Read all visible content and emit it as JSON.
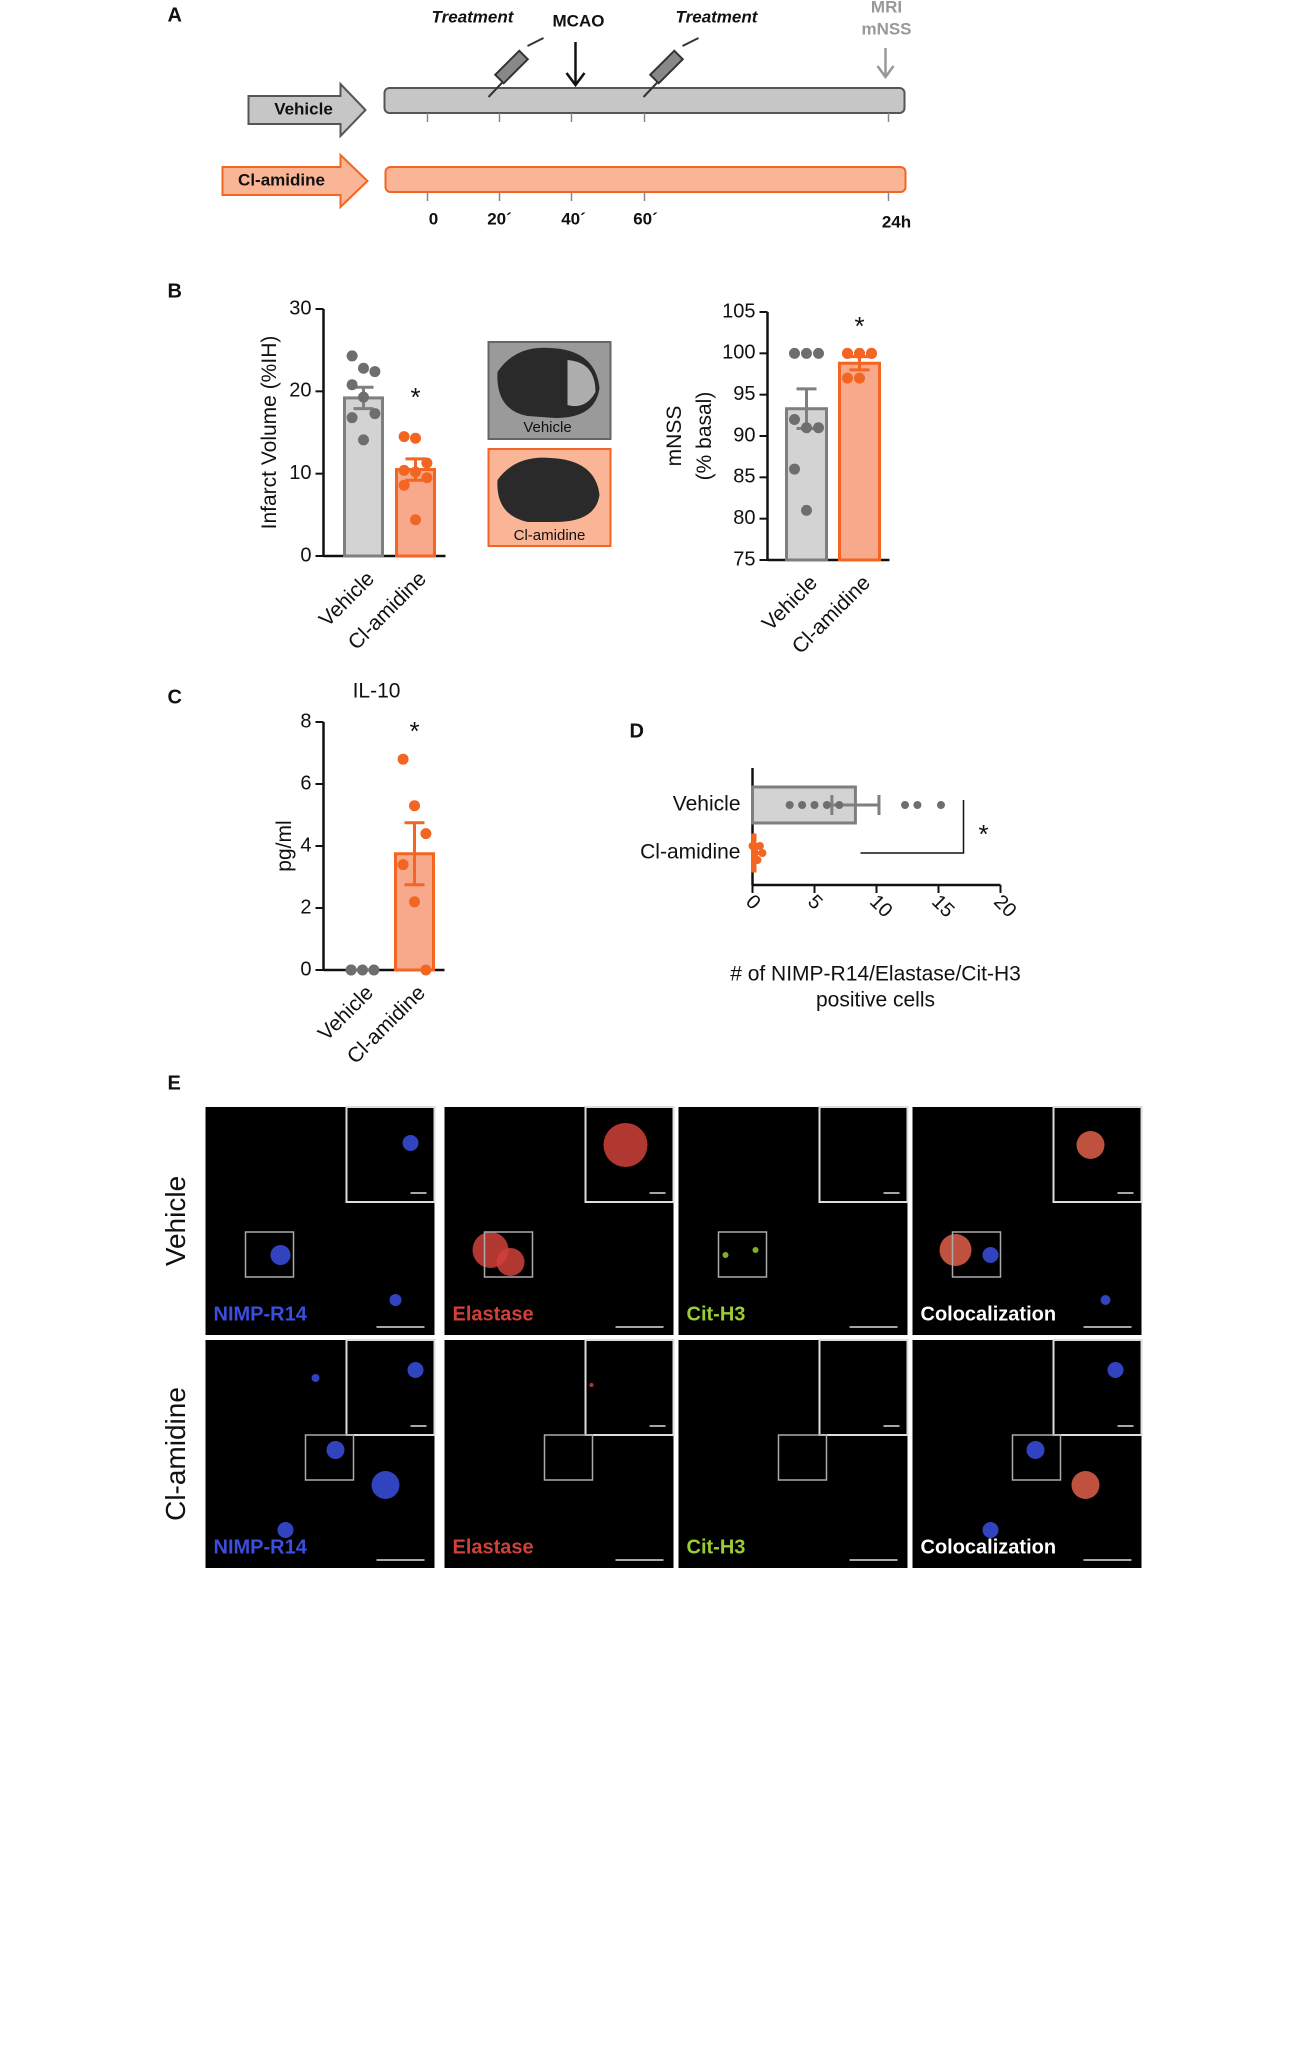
{
  "panels": {
    "A": {
      "label": "A",
      "groups": [
        "Vehicle",
        "Cl-amidine"
      ],
      "events": [
        "Treatment",
        "MCAO",
        "Treatment",
        "MRI",
        "mNSS"
      ],
      "times": [
        "0",
        "20´",
        "40´",
        "60´",
        "24h"
      ]
    },
    "B": {
      "label": "B",
      "images": [
        "Vehicle",
        "Cl-amidine"
      ]
    },
    "C": {
      "label": "C"
    },
    "D": {
      "label": "D"
    },
    "E": {
      "label": "E",
      "rows": [
        "Vehicle",
        "Cl-amidine"
      ],
      "channels": [
        "NIMP-R14",
        "Elastase",
        "Cit-H3",
        "Colocalization"
      ]
    }
  },
  "chart_data": [
    {
      "type": "bar",
      "ylabel": "Infarct Volume (%IH)",
      "categories": [
        "Vehicle",
        "Cl-amidine"
      ],
      "values": [
        19.2,
        10.5
      ],
      "errors": [
        1.3,
        1.3
      ],
      "points": [
        [
          24.3,
          22.8,
          22.4,
          20.8,
          19.3,
          17.3,
          16.8,
          14.1
        ],
        [
          14.5,
          14.3,
          11.3,
          10.4,
          10.2,
          9.5,
          8.6,
          4.4
        ]
      ],
      "colors": [
        "#d3d3d3",
        "#f9a98b"
      ],
      "edge_colors": [
        "#7f7f7f",
        "#f26522"
      ],
      "point_colors": [
        "#6e6e6e",
        "#f26522"
      ],
      "ylim": [
        0,
        30
      ],
      "yticks": [
        0,
        10,
        20,
        30
      ],
      "annotation": "*"
    },
    {
      "type": "bar",
      "ylabel": [
        "mNSS",
        "(% basal)"
      ],
      "categories": [
        "Vehicle",
        "Cl-amidine"
      ],
      "values": [
        93.3,
        98.8
      ],
      "errors": [
        2.4,
        0.8
      ],
      "points": [
        [
          100,
          100,
          100,
          92,
          91,
          91,
          86,
          81
        ],
        [
          100,
          100,
          100,
          100,
          100,
          100,
          97,
          97
        ]
      ],
      "colors": [
        "#d3d3d3",
        "#f9a98b"
      ],
      "edge_colors": [
        "#7f7f7f",
        "#f26522"
      ],
      "point_colors": [
        "#6e6e6e",
        "#f26522"
      ],
      "ylim": [
        75,
        105
      ],
      "yticks": [
        75,
        80,
        85,
        90,
        95,
        100,
        105
      ],
      "annotation": "*"
    },
    {
      "type": "bar",
      "title": "IL-10",
      "ylabel": "pg/ml",
      "categories": [
        "Vehicle",
        "Cl-amidine"
      ],
      "values": [
        0,
        3.75
      ],
      "errors": [
        0,
        1.0
      ],
      "points": [
        [
          0,
          0,
          0,
          0
        ],
        [
          6.8,
          5.3,
          4.4,
          3.4,
          2.2,
          0
        ]
      ],
      "colors": [
        "#d3d3d3",
        "#f9a98b"
      ],
      "edge_colors": [
        "#7f7f7f",
        "#f26522"
      ],
      "point_colors": [
        "#6e6e6e",
        "#f26522"
      ],
      "ylim": [
        0,
        8
      ],
      "yticks": [
        0,
        2,
        4,
        6,
        8
      ],
      "annotation": "*"
    },
    {
      "type": "hbar",
      "xlabel": [
        "# of NIMP-R14/Elastase/Cit-H3",
        "positive cells"
      ],
      "categories": [
        "Vehicle",
        "Cl-amidine"
      ],
      "values": [
        8.3,
        0.2
      ],
      "errors": [
        1.9,
        0.1
      ],
      "points": [
        [
          3,
          4,
          5,
          6,
          7,
          12.3,
          13.3,
          15.2
        ],
        [
          0,
          0.2,
          0.4,
          0.6,
          0.8,
          0.3
        ]
      ],
      "colors": [
        "#d3d3d3",
        "#f9a98b"
      ],
      "edge_colors": [
        "#7f7f7f",
        "#f26522"
      ],
      "point_colors": [
        "#6e6e6e",
        "#f26522"
      ],
      "xlim": [
        0,
        20
      ],
      "xticks": [
        0,
        5,
        10,
        15,
        20
      ],
      "annotation": "*"
    }
  ]
}
